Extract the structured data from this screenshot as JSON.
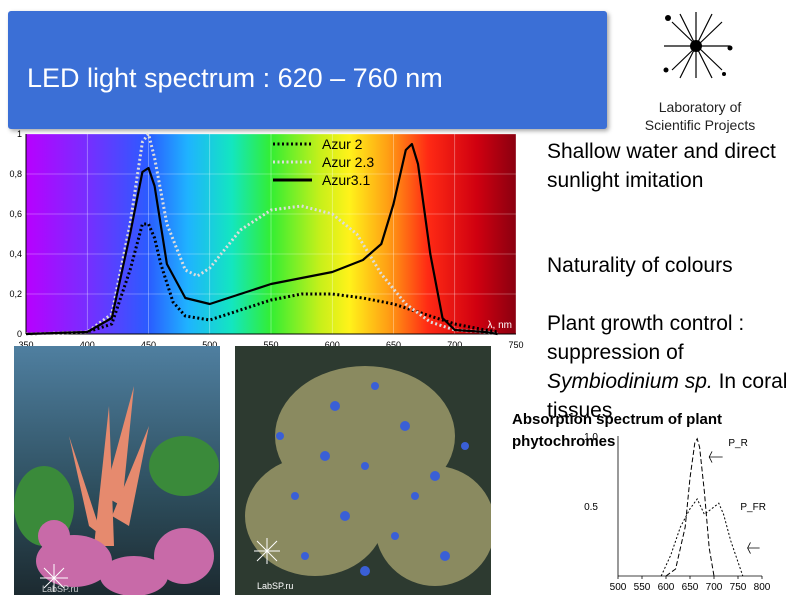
{
  "header": {
    "title": "LED light spectrum : 620 – 760  nm",
    "lab_name": "Laboratory of Scientific Projects"
  },
  "bullets": {
    "b1": "Shallow water and direct sunlight imitation",
    "b2": "Naturality of colours",
    "b3_prefix": "Plant growth control : suppression of ",
    "b3_species": "Symbiodinium sp.",
    "b3_suffix": " In coral tissues"
  },
  "photos": {
    "photo1_watermark": "LabSP.ru",
    "photo2_watermark": "LabSP.ru"
  },
  "chart_data": [
    {
      "type": "line",
      "title": "",
      "xlabel": "λ, nm",
      "ylabel": "",
      "xlim": [
        350,
        750
      ],
      "ylim": [
        0,
        1
      ],
      "x_ticks": [
        "350",
        "400",
        "450",
        "500",
        "550",
        "600",
        "650",
        "700",
        "750"
      ],
      "y_ticks": [
        "0",
        "0,2",
        "0,4",
        "0,6",
        "0,8",
        "1"
      ],
      "legend_position": "top-center",
      "series": [
        {
          "name": "Azur 2",
          "style": "dotted",
          "color": "#000000",
          "x": [
            350,
            400,
            420,
            435,
            445,
            450,
            455,
            460,
            470,
            480,
            500,
            525,
            550,
            575,
            600,
            625,
            650,
            675,
            700,
            725,
            735
          ],
          "y": [
            0,
            0.01,
            0.05,
            0.32,
            0.55,
            0.55,
            0.48,
            0.35,
            0.16,
            0.09,
            0.07,
            0.12,
            0.17,
            0.2,
            0.2,
            0.18,
            0.15,
            0.1,
            0.05,
            0.02,
            0.01
          ]
        },
        {
          "name": "Azur 2.3",
          "style": "dotted",
          "color": "#dddddd",
          "x": [
            350,
            400,
            420,
            435,
            445,
            450,
            455,
            465,
            480,
            490,
            500,
            525,
            550,
            575,
            600,
            620,
            640,
            660,
            680,
            700,
            725,
            735
          ],
          "y": [
            0,
            0.01,
            0.1,
            0.55,
            0.96,
            1.0,
            0.88,
            0.55,
            0.32,
            0.29,
            0.33,
            0.52,
            0.62,
            0.64,
            0.6,
            0.5,
            0.3,
            0.15,
            0.06,
            0.02,
            0.01,
            0.0
          ]
        },
        {
          "name": "Azur3.1",
          "style": "solid",
          "color": "#000000",
          "x": [
            350,
            400,
            420,
            435,
            445,
            450,
            455,
            465,
            480,
            500,
            525,
            550,
            575,
            600,
            625,
            640,
            650,
            660,
            665,
            670,
            680,
            690,
            700,
            725,
            735
          ],
          "y": [
            0,
            0.01,
            0.08,
            0.5,
            0.81,
            0.83,
            0.74,
            0.35,
            0.18,
            0.15,
            0.2,
            0.25,
            0.28,
            0.31,
            0.37,
            0.45,
            0.65,
            0.92,
            0.95,
            0.85,
            0.4,
            0.08,
            0.02,
            0.01,
            0.0
          ]
        }
      ]
    },
    {
      "type": "line",
      "title": "Absorption spectrum of plant phytochromes",
      "xlabel": "",
      "ylabel": "",
      "xlim": [
        500,
        800
      ],
      "ylim": [
        0,
        1.0
      ],
      "x_ticks": [
        "500",
        "550",
        "600",
        "650",
        "700",
        "750",
        "800"
      ],
      "y_ticks": [
        "0.5",
        "1.0"
      ],
      "labels": [
        "P_R",
        "P_FR"
      ],
      "series": [
        {
          "name": "P_R",
          "style": "dashed",
          "x": [
            600,
            620,
            640,
            650,
            660,
            665,
            670,
            680,
            690,
            700
          ],
          "y": [
            0.0,
            0.05,
            0.35,
            0.7,
            0.95,
            0.98,
            0.92,
            0.6,
            0.2,
            0.0
          ]
        },
        {
          "name": "P_FR",
          "style": "dashed",
          "x": [
            590,
            610,
            630,
            650,
            665,
            680,
            695,
            710,
            720,
            735,
            750,
            760
          ],
          "y": [
            0.0,
            0.15,
            0.35,
            0.48,
            0.55,
            0.44,
            0.48,
            0.52,
            0.44,
            0.25,
            0.1,
            0.0
          ]
        }
      ]
    }
  ]
}
